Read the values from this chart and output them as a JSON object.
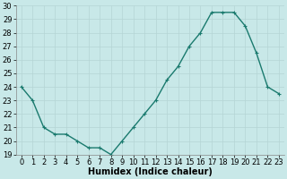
{
  "x": [
    0,
    1,
    2,
    3,
    4,
    5,
    6,
    7,
    8,
    9,
    10,
    11,
    12,
    13,
    14,
    15,
    16,
    17,
    18,
    19,
    20,
    21,
    22,
    23
  ],
  "y": [
    24,
    23,
    21,
    20.5,
    20.5,
    20,
    19.5,
    19.5,
    19,
    20,
    21,
    22,
    23,
    24.5,
    25.5,
    27,
    28,
    29.5,
    29.5,
    29.5,
    28.5,
    26.5,
    24,
    23.5
  ],
  "line_color": "#1a7a6e",
  "marker_color": "#1a7a6e",
  "bg_color": "#c8e8e8",
  "grid_color": "#b5d5d5",
  "xlabel": "Humidex (Indice chaleur)",
  "ylim": [
    19,
    30
  ],
  "xlim": [
    -0.5,
    23.5
  ],
  "yticks": [
    19,
    20,
    21,
    22,
    23,
    24,
    25,
    26,
    27,
    28,
    29,
    30
  ],
  "xticks": [
    0,
    1,
    2,
    3,
    4,
    5,
    6,
    7,
    8,
    9,
    10,
    11,
    12,
    13,
    14,
    15,
    16,
    17,
    18,
    19,
    20,
    21,
    22,
    23
  ],
  "xlabel_fontsize": 7,
  "tick_fontsize": 6,
  "line_width": 1.0,
  "marker_size": 2.5
}
